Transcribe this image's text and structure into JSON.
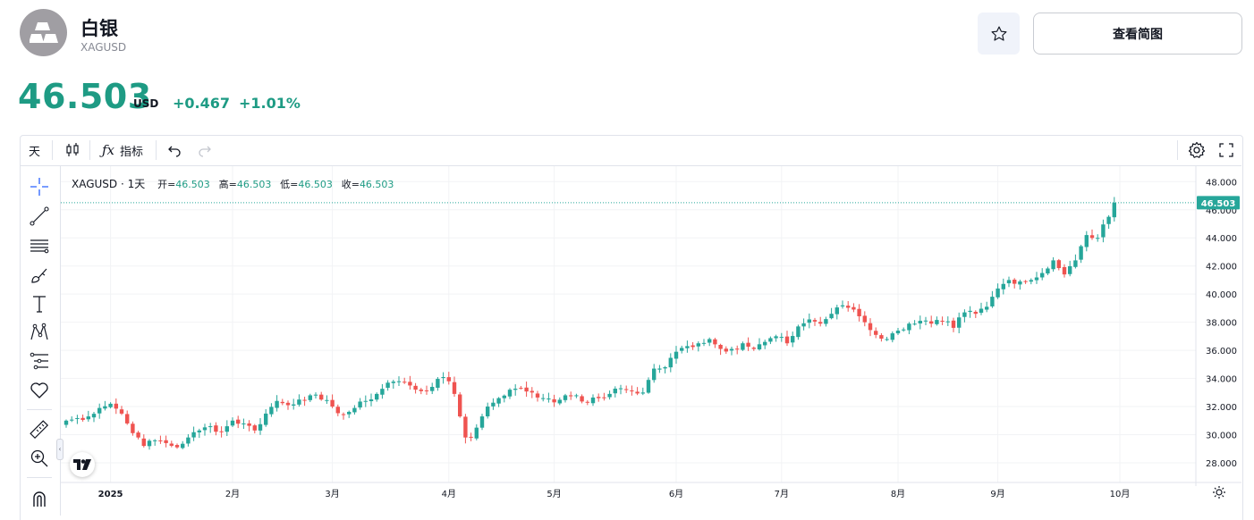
{
  "header": {
    "title": "白银",
    "ticker": "XAGUSD",
    "view_chart_label": "查看简图"
  },
  "quote": {
    "price": "46.503",
    "currency": "USD",
    "change": "+0.467",
    "change_percent": "+1.01%"
  },
  "toolbar": {
    "interval": "天",
    "indicators_label": "指标"
  },
  "left_tools": [
    "crosshair-icon",
    "trendline-icon",
    "fib-lines-icon",
    "brush-icon",
    "text-icon",
    "pattern-icon",
    "forecast-icon",
    "favorite-heart-icon",
    "ruler-icon",
    "zoom-in-icon",
    "magnet-icon"
  ],
  "legend": {
    "symbol": "XAGUSD · 1天",
    "open_label": "开=",
    "open": "46.503",
    "high_label": "高=",
    "high": "46.503",
    "low_label": "低=",
    "low": "46.503",
    "close_label": "收=",
    "close": "46.503"
  },
  "colors": {
    "up": "#26a69a",
    "down": "#ef5350",
    "accent": "#1e9b84"
  },
  "chart_data": {
    "type": "candlestick",
    "title": "XAGUSD · 1天",
    "y_ticks": [
      "48.000",
      "46.000",
      "44.000",
      "42.000",
      "40.000",
      "38.000",
      "36.000",
      "34.000",
      "32.000",
      "30.000",
      "28.000"
    ],
    "y_tick_values": [
      48,
      46,
      44,
      42,
      40,
      38,
      36,
      34,
      32,
      30,
      28
    ],
    "ylim": [
      26.6,
      49.1
    ],
    "x_ticks": [
      "2025",
      "2月",
      "3月",
      "4月",
      "5月",
      "6月",
      "7月",
      "8月",
      "9月",
      "10月"
    ],
    "x_tick_bar_index": [
      8,
      30,
      48,
      69,
      88,
      110,
      129,
      150,
      168,
      190
    ],
    "last_price_label": "46.503",
    "last_price": 46.503,
    "keyframes_close": [
      [
        0,
        31.0
      ],
      [
        4,
        31.3
      ],
      [
        6,
        31.9
      ],
      [
        8,
        32.2
      ],
      [
        10,
        31.5
      ],
      [
        11,
        30.8
      ],
      [
        13,
        29.8
      ],
      [
        14,
        29.2
      ],
      [
        16,
        29.6
      ],
      [
        18,
        29.4
      ],
      [
        20,
        29.1
      ],
      [
        22,
        29.8
      ],
      [
        24,
        30.3
      ],
      [
        26,
        30.6
      ],
      [
        28,
        30.2
      ],
      [
        30,
        31.0
      ],
      [
        32,
        30.8
      ],
      [
        34,
        30.3
      ],
      [
        36,
        31.5
      ],
      [
        38,
        32.4
      ],
      [
        40,
        32.1
      ],
      [
        42,
        32.5
      ],
      [
        44,
        32.8
      ],
      [
        46,
        32.5
      ],
      [
        48,
        32.0
      ],
      [
        50,
        31.4
      ],
      [
        52,
        31.9
      ],
      [
        54,
        32.4
      ],
      [
        56,
        32.9
      ],
      [
        58,
        33.7
      ],
      [
        60,
        33.8
      ],
      [
        62,
        33.5
      ],
      [
        64,
        33.1
      ],
      [
        66,
        33.4
      ],
      [
        68,
        34.1
      ],
      [
        69,
        33.8
      ],
      [
        70,
        32.9
      ],
      [
        71,
        31.3
      ],
      [
        72,
        29.8
      ],
      [
        73,
        29.8
      ],
      [
        74,
        30.5
      ],
      [
        75,
        31.3
      ],
      [
        76,
        32.0
      ],
      [
        78,
        32.6
      ],
      [
        80,
        33.2
      ],
      [
        82,
        33.3
      ],
      [
        84,
        33.0
      ],
      [
        86,
        32.6
      ],
      [
        88,
        32.3
      ],
      [
        90,
        32.8
      ],
      [
        92,
        32.8
      ],
      [
        94,
        32.3
      ],
      [
        96,
        32.6
      ],
      [
        98,
        32.9
      ],
      [
        100,
        33.3
      ],
      [
        102,
        33.1
      ],
      [
        104,
        33.0
      ],
      [
        106,
        34.7
      ],
      [
        108,
        34.8
      ],
      [
        110,
        35.9
      ],
      [
        112,
        36.3
      ],
      [
        114,
        36.5
      ],
      [
        116,
        36.8
      ],
      [
        118,
        36.1
      ],
      [
        120,
        36.1
      ],
      [
        122,
        36.5
      ],
      [
        124,
        36.1
      ],
      [
        126,
        36.6
      ],
      [
        128,
        37.0
      ],
      [
        130,
        36.5
      ],
      [
        132,
        37.7
      ],
      [
        134,
        38.2
      ],
      [
        136,
        37.9
      ],
      [
        138,
        38.6
      ],
      [
        140,
        39.2
      ],
      [
        142,
        38.9
      ],
      [
        144,
        38.0
      ],
      [
        146,
        37.1
      ],
      [
        148,
        36.8
      ],
      [
        150,
        37.4
      ],
      [
        152,
        37.9
      ],
      [
        154,
        38.1
      ],
      [
        156,
        37.9
      ],
      [
        158,
        38.1
      ],
      [
        160,
        37.6
      ],
      [
        162,
        38.7
      ],
      [
        164,
        38.6
      ],
      [
        166,
        39.1
      ],
      [
        168,
        40.4
      ],
      [
        170,
        41.0
      ],
      [
        172,
        40.9
      ],
      [
        174,
        41.0
      ],
      [
        176,
        41.5
      ],
      [
        178,
        42.4
      ],
      [
        180,
        41.4
      ],
      [
        182,
        42.4
      ],
      [
        184,
        44.2
      ],
      [
        186,
        44.0
      ],
      [
        188,
        45.5
      ],
      [
        189,
        46.5
      ]
    ]
  }
}
